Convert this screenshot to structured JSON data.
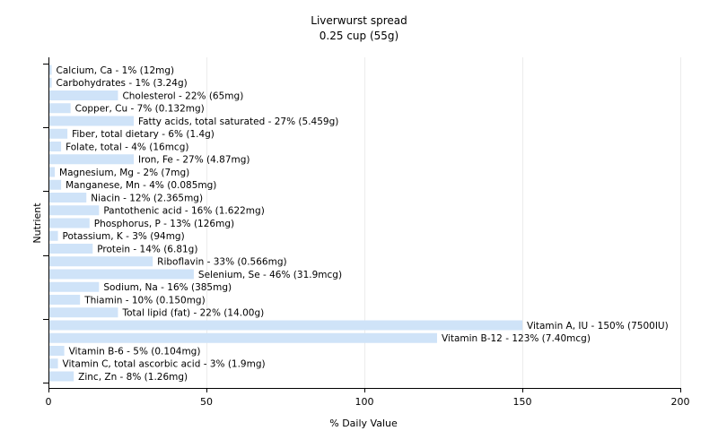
{
  "chart_data": {
    "type": "bar",
    "orientation": "horizontal",
    "title": "Liverwurst spread",
    "subtitle": "0.25 cup (55g)",
    "xlabel": "% Daily Value",
    "ylabel": "Nutrient",
    "xlim": [
      0,
      200
    ],
    "xticks": [
      0,
      50,
      100,
      150,
      200
    ],
    "grid": true,
    "bar_color": "#cfe3f8",
    "categories": [
      "Calcium, Ca",
      "Carbohydrates",
      "Cholesterol",
      "Copper, Cu",
      "Fatty acids, total saturated",
      "Fiber, total dietary",
      "Folate, total",
      "Iron, Fe",
      "Magnesium, Mg",
      "Manganese, Mn",
      "Niacin",
      "Pantothenic acid",
      "Phosphorus, P",
      "Potassium, K",
      "Protein",
      "Riboflavin",
      "Selenium, Se",
      "Sodium, Na",
      "Thiamin",
      "Total lipid (fat)",
      "Vitamin A, IU",
      "Vitamin B-12",
      "Vitamin B-6",
      "Vitamin C, total ascorbic acid",
      "Zinc, Zn"
    ],
    "values": [
      1,
      1,
      22,
      7,
      27,
      6,
      4,
      27,
      2,
      4,
      12,
      16,
      13,
      3,
      14,
      33,
      46,
      16,
      10,
      22,
      150,
      123,
      5,
      3,
      8
    ],
    "labels": [
      "Calcium, Ca - 1% (12mg)",
      "Carbohydrates - 1% (3.24g)",
      "Cholesterol - 22% (65mg)",
      "Copper, Cu - 7% (0.132mg)",
      "Fatty acids, total saturated - 27% (5.459g)",
      "Fiber, total dietary - 6% (1.4g)",
      "Folate, total - 4% (16mcg)",
      "Iron, Fe - 27% (4.87mg)",
      "Magnesium, Mg - 2% (7mg)",
      "Manganese, Mn - 4% (0.085mg)",
      "Niacin - 12% (2.365mg)",
      "Pantothenic acid - 16% (1.622mg)",
      "Phosphorus, P - 13% (126mg)",
      "Potassium, K - 3% (94mg)",
      "Protein - 14% (6.81g)",
      "Riboflavin - 33% (0.566mg)",
      "Selenium, Se - 46% (31.9mcg)",
      "Sodium, Na - 16% (385mg)",
      "Thiamin - 10% (0.150mg)",
      "Total lipid (fat) - 22% (14.00g)",
      "Vitamin A, IU - 150% (7500IU)",
      "Vitamin B-12 - 123% (7.40mcg)",
      "Vitamin B-6 - 5% (0.104mg)",
      "Vitamin C, total ascorbic acid - 3% (1.9mg)",
      "Zinc, Zn - 8% (1.26mg)"
    ]
  }
}
